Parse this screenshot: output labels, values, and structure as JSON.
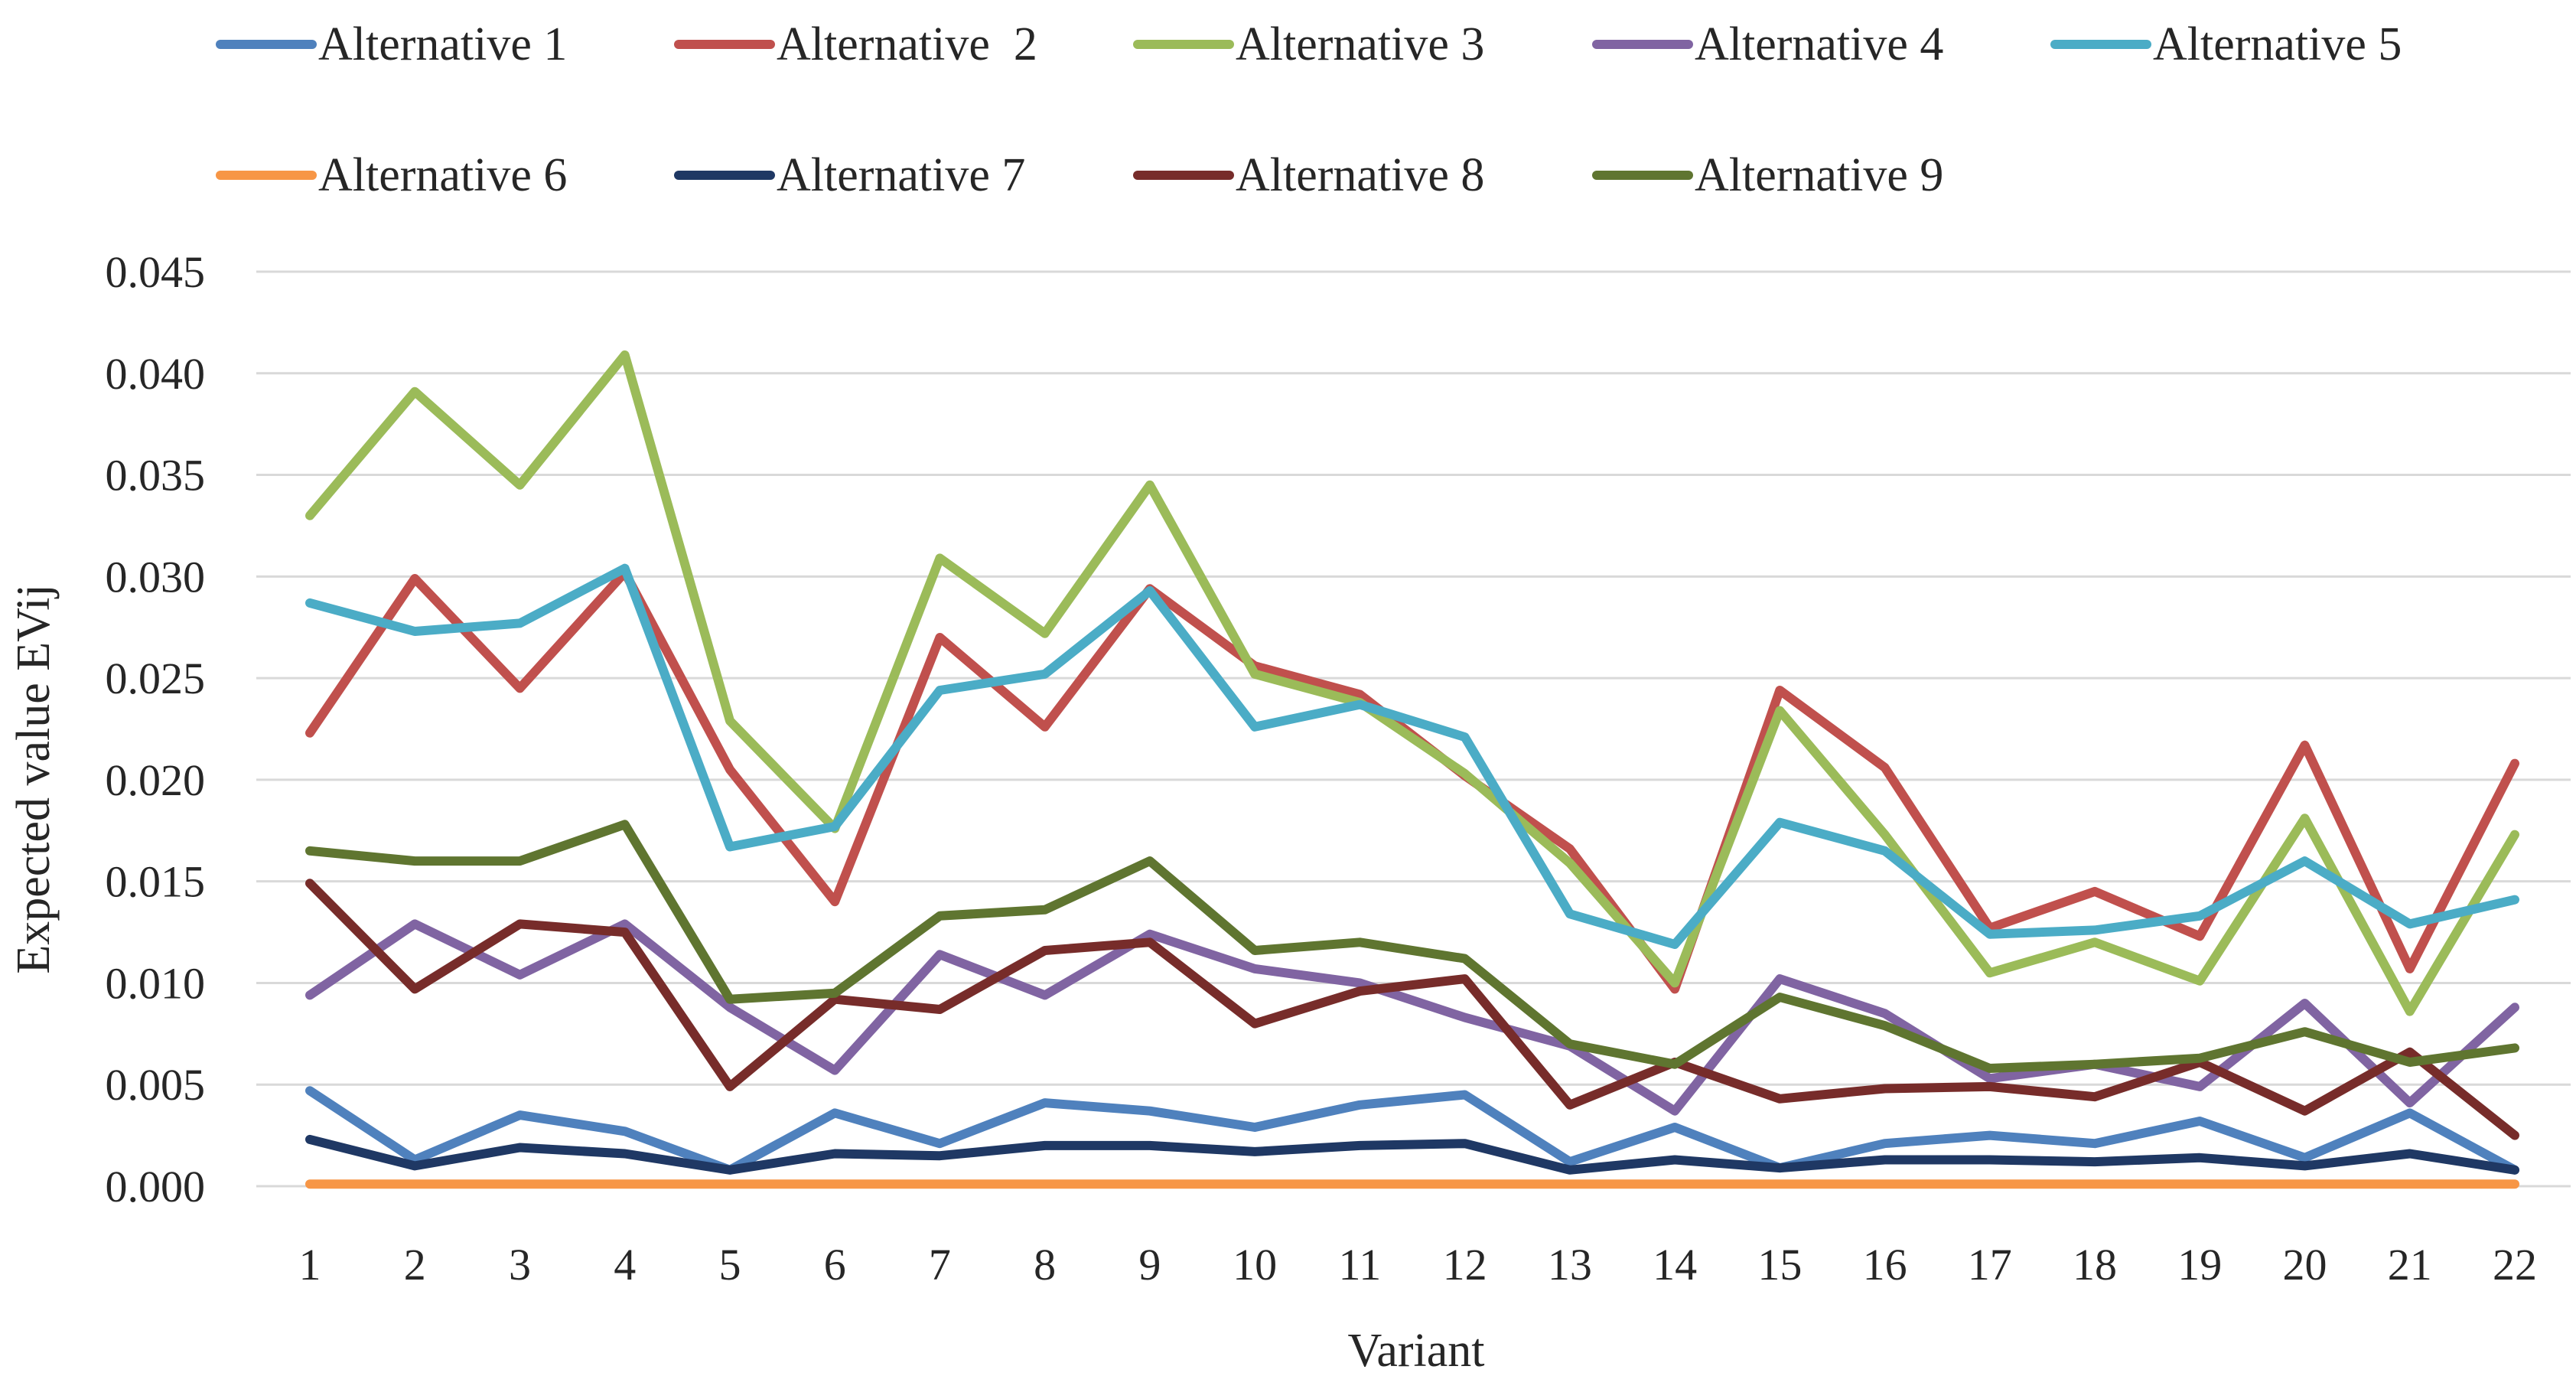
{
  "chart_data": {
    "type": "line",
    "xlabel": "Variant",
    "ylabel": "Expected value EVij",
    "ylim": [
      0,
      0.045
    ],
    "yticks": [
      "0.000",
      "0.005",
      "0.010",
      "0.015",
      "0.020",
      "0.025",
      "0.030",
      "0.035",
      "0.040",
      "0.045"
    ],
    "x": [
      "1",
      "2",
      "3",
      "4",
      "5",
      "6",
      "7",
      "8",
      "9",
      "10",
      "11",
      "12",
      "13",
      "14",
      "15",
      "16",
      "17",
      "18",
      "19",
      "20",
      "21",
      "22"
    ],
    "grid": true,
    "legend_position": "top",
    "series": [
      {
        "name": "Alternative 1",
        "color": "#4f81bd",
        "values": [
          0.0047,
          0.0013,
          0.0035,
          0.0027,
          0.0008,
          0.0036,
          0.0021,
          0.0041,
          0.0037,
          0.0029,
          0.004,
          0.0045,
          0.0012,
          0.0029,
          0.0009,
          0.0021,
          0.0025,
          0.0021,
          0.0032,
          0.0014,
          0.0036,
          0.0008
        ]
      },
      {
        "name": "Alternative  2",
        "color": "#c0504d",
        "values": [
          0.0223,
          0.0299,
          0.0245,
          0.0302,
          0.0205,
          0.014,
          0.027,
          0.0226,
          0.0294,
          0.0256,
          0.0242,
          0.0202,
          0.0166,
          0.0097,
          0.0244,
          0.0206,
          0.0127,
          0.0145,
          0.0123,
          0.0217,
          0.0107,
          0.0208
        ]
      },
      {
        "name": "Alternative 3",
        "color": "#9bbb59",
        "values": [
          0.033,
          0.0391,
          0.0345,
          0.0409,
          0.0229,
          0.0176,
          0.0309,
          0.0272,
          0.0345,
          0.0252,
          0.0238,
          0.0203,
          0.0159,
          0.01,
          0.0234,
          0.0173,
          0.0105,
          0.012,
          0.0101,
          0.0181,
          0.0086,
          0.0173
        ]
      },
      {
        "name": "Alternative 4",
        "color": "#8064a2",
        "values": [
          0.0094,
          0.0129,
          0.0104,
          0.0129,
          0.0088,
          0.0057,
          0.0114,
          0.0094,
          0.0124,
          0.0107,
          0.01,
          0.0083,
          0.0069,
          0.0037,
          0.0102,
          0.0085,
          0.0053,
          0.006,
          0.0049,
          0.009,
          0.0041,
          0.0088
        ]
      },
      {
        "name": "Alternative 5",
        "color": "#4bacc6",
        "values": [
          0.0287,
          0.0273,
          0.0277,
          0.0304,
          0.0167,
          0.0177,
          0.0244,
          0.0252,
          0.0293,
          0.0226,
          0.0237,
          0.0221,
          0.0134,
          0.0119,
          0.0179,
          0.0165,
          0.0124,
          0.0126,
          0.0133,
          0.016,
          0.0129,
          0.0141
        ]
      },
      {
        "name": "Alternative 6",
        "color": "#f79646",
        "values": [
          0.0001,
          0.0001,
          0.0001,
          0.0001,
          0.0001,
          0.0001,
          0.0001,
          0.0001,
          0.0001,
          0.0001,
          0.0001,
          0.0001,
          0.0001,
          0.0001,
          0.0001,
          0.0001,
          0.0001,
          0.0001,
          0.0001,
          0.0001,
          0.0001,
          0.0001
        ]
      },
      {
        "name": "Alternative 7",
        "color": "#1f3864",
        "values": [
          0.0023,
          0.001,
          0.0019,
          0.0016,
          0.0008,
          0.0016,
          0.0015,
          0.002,
          0.002,
          0.0017,
          0.002,
          0.0021,
          0.0008,
          0.0013,
          0.0009,
          0.0013,
          0.0013,
          0.0012,
          0.0014,
          0.001,
          0.0016,
          0.0008
        ]
      },
      {
        "name": "Alternative 8",
        "color": "#772c2a",
        "values": [
          0.0149,
          0.0097,
          0.0129,
          0.0125,
          0.0049,
          0.0092,
          0.0087,
          0.0116,
          0.012,
          0.008,
          0.0096,
          0.0102,
          0.004,
          0.0061,
          0.0043,
          0.0048,
          0.0049,
          0.0044,
          0.0061,
          0.0037,
          0.0066,
          0.0025
        ]
      },
      {
        "name": "Alternative 9",
        "color": "#5f7530",
        "values": [
          0.0165,
          0.016,
          0.016,
          0.0178,
          0.0092,
          0.0095,
          0.0133,
          0.0136,
          0.016,
          0.0116,
          0.012,
          0.0112,
          0.007,
          0.006,
          0.0093,
          0.0079,
          0.0058,
          0.006,
          0.0063,
          0.0076,
          0.0061,
          0.0068
        ]
      }
    ]
  }
}
